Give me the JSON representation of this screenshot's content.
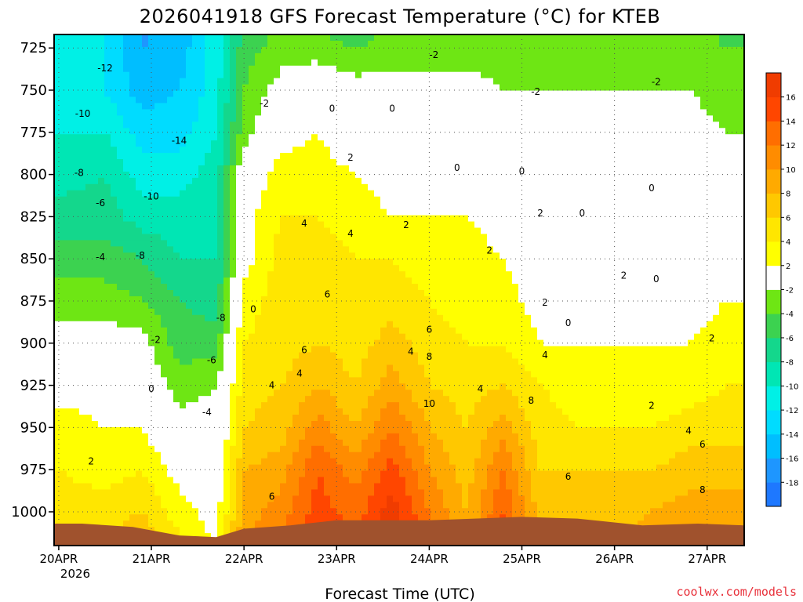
{
  "chart_data": {
    "type": "heatmap",
    "title": "2026041918 GFS Forecast Temperature (°C) for KTEB",
    "xlabel": "Forecast Time (UTC)",
    "ylabel": "",
    "credit": "coolwx.com/models",
    "y_axis": {
      "ticks": [
        725,
        750,
        775,
        800,
        825,
        850,
        875,
        900,
        925,
        950,
        975,
        1000
      ],
      "range": [
        717,
        1020
      ],
      "inverted": true,
      "units": "hPa"
    },
    "x_axis": {
      "ticks": [
        "20APR",
        "21APR",
        "22APR",
        "23APR",
        "24APR",
        "25APR",
        "26APR",
        "27APR"
      ],
      "year_label": "2026",
      "range": [
        -0.05,
        7.4
      ]
    },
    "grid": true,
    "colorbar": {
      "levels": [
        -18,
        -16,
        -14,
        -12,
        -10,
        -8,
        -6,
        -4,
        -2,
        2,
        4,
        6,
        8,
        10,
        12,
        14,
        16
      ],
      "colors": [
        "#1e78ff",
        "#1e96ff",
        "#00beff",
        "#00dcff",
        "#00f0e6",
        "#00e6b4",
        "#14d78c",
        "#3cd250",
        "#6ee614",
        "#ffffff",
        "#ffff00",
        "#ffe600",
        "#ffc800",
        "#ffaa00",
        "#ff8c00",
        "#ff6e00",
        "#ff4600",
        "#f03c00"
      ]
    },
    "profiles": [
      {
        "time": 0.0,
        "temps": [
          -11,
          -11,
          -10,
          -9,
          -7,
          -5,
          -3,
          -1,
          1,
          3,
          4,
          5
        ]
      },
      {
        "time": 0.5,
        "temps": [
          -12,
          -12,
          -10,
          -8,
          -7,
          -5,
          -3,
          -1,
          1,
          2,
          3,
          5
        ]
      },
      {
        "time": 0.9,
        "temps": [
          -16,
          -15,
          -13,
          -11,
          -9,
          -6,
          -4,
          -1,
          0,
          2,
          4,
          6
        ]
      },
      {
        "time": 1.3,
        "temps": [
          -15,
          -14,
          -13,
          -11,
          -9,
          -8,
          -6,
          -5,
          -3,
          -1,
          1,
          3
        ]
      },
      {
        "time": 1.7,
        "temps": [
          -11,
          -11,
          -10,
          -9,
          -8,
          -8,
          -7,
          -5,
          -2,
          -1,
          0,
          1
        ]
      },
      {
        "time": 2.0,
        "temps": [
          -5,
          -4,
          -3,
          0,
          1,
          1,
          3,
          4,
          5,
          6,
          8,
          9
        ]
      },
      {
        "time": 2.4,
        "temps": [
          -3,
          -1,
          1,
          3,
          4,
          5,
          5,
          5,
          6,
          7,
          9,
          11
        ]
      },
      {
        "time": 2.8,
        "temps": [
          -3,
          0,
          2,
          3,
          4,
          5,
          5,
          6,
          8,
          11,
          14,
          15
        ]
      },
      {
        "time": 3.2,
        "temps": [
          -4,
          -1,
          0,
          2,
          3,
          4,
          4,
          5,
          6,
          8,
          11,
          13
        ]
      },
      {
        "time": 3.6,
        "temps": [
          -3,
          -1,
          0,
          1,
          2,
          4,
          5,
          7,
          9,
          12,
          15,
          17
        ]
      },
      {
        "time": 4.0,
        "temps": [
          -3,
          -1,
          0,
          1,
          2,
          3,
          4,
          5,
          6,
          8,
          10,
          12
        ]
      },
      {
        "time": 4.4,
        "temps": [
          -3,
          -1,
          0,
          1,
          2,
          3,
          3,
          4,
          5,
          6,
          7,
          8
        ]
      },
      {
        "time": 4.8,
        "temps": [
          -3,
          -2,
          -1,
          0,
          1,
          2,
          3,
          4,
          6,
          9,
          12,
          14
        ]
      },
      {
        "time": 5.2,
        "temps": [
          -3,
          -2,
          -1,
          -1,
          0,
          0,
          1,
          2,
          4,
          5,
          6,
          7
        ]
      },
      {
        "time": 5.6,
        "temps": [
          -3,
          -2,
          -1,
          0,
          0,
          0,
          1,
          2,
          3,
          4,
          6,
          7
        ]
      },
      {
        "time": 6.0,
        "temps": [
          -3,
          -2,
          -1,
          0,
          0,
          1,
          1,
          2,
          3,
          4,
          6,
          7
        ]
      },
      {
        "time": 6.4,
        "temps": [
          -3,
          -2,
          -1,
          0,
          0,
          1,
          1,
          2,
          2,
          4,
          6,
          8
        ]
      },
      {
        "time": 6.8,
        "temps": [
          -3,
          -2,
          -1,
          -1,
          0,
          1,
          1,
          2,
          3,
          5,
          7,
          9
        ]
      },
      {
        "time": 7.2,
        "temps": [
          -4,
          -3,
          -2,
          -1,
          0,
          1,
          2,
          3,
          4,
          5,
          7,
          9
        ]
      },
      {
        "time": 7.4,
        "temps": [
          -4,
          -3,
          -2,
          -1,
          0,
          1,
          2,
          3,
          4,
          5,
          7,
          9
        ]
      }
    ],
    "terrain": {
      "color": "#a0522d",
      "surface_pressure": [
        {
          "time": -0.05,
          "p": 1007
        },
        {
          "time": 0.25,
          "p": 1007
        },
        {
          "time": 0.8,
          "p": 1009
        },
        {
          "time": 1.3,
          "p": 1014
        },
        {
          "time": 1.7,
          "p": 1015
        },
        {
          "time": 2.0,
          "p": 1010
        },
        {
          "time": 2.5,
          "p": 1008
        },
        {
          "time": 3.0,
          "p": 1005
        },
        {
          "time": 4.0,
          "p": 1005
        },
        {
          "time": 5.0,
          "p": 1003
        },
        {
          "time": 5.6,
          "p": 1004
        },
        {
          "time": 6.3,
          "p": 1008
        },
        {
          "time": 6.9,
          "p": 1007
        },
        {
          "time": 7.4,
          "p": 1008
        }
      ]
    },
    "contour_labels": [
      {
        "text": "-12",
        "time": 0.5,
        "p": 737
      },
      {
        "text": "-10",
        "time": 0.26,
        "p": 764
      },
      {
        "text": "-14",
        "time": 1.3,
        "p": 780
      },
      {
        "text": "-8",
        "time": 0.22,
        "p": 799
      },
      {
        "text": "-10",
        "time": 1.0,
        "p": 813
      },
      {
        "text": "-6",
        "time": 0.45,
        "p": 817
      },
      {
        "text": "-4",
        "time": 0.45,
        "p": 849
      },
      {
        "text": "-8",
        "time": 0.88,
        "p": 848
      },
      {
        "text": "-8",
        "time": 1.75,
        "p": 885
      },
      {
        "text": "-2",
        "time": 1.05,
        "p": 898
      },
      {
        "text": "-6",
        "time": 1.65,
        "p": 910
      },
      {
        "text": "-4",
        "time": 1.6,
        "p": 941
      },
      {
        "text": "0",
        "time": 1.0,
        "p": 927
      },
      {
        "text": "2",
        "time": 0.35,
        "p": 970
      },
      {
        "text": "0",
        "time": 2.1,
        "p": 880
      },
      {
        "text": "-2",
        "time": 2.22,
        "p": 758
      },
      {
        "text": "0",
        "time": 2.95,
        "p": 761
      },
      {
        "text": "0",
        "time": 3.6,
        "p": 761
      },
      {
        "text": "-2",
        "time": 4.05,
        "p": 729
      },
      {
        "text": "-2",
        "time": 5.15,
        "p": 751
      },
      {
        "text": "-2",
        "time": 6.45,
        "p": 745
      },
      {
        "text": "2",
        "time": 3.15,
        "p": 790
      },
      {
        "text": "0",
        "time": 4.3,
        "p": 796
      },
      {
        "text": "0",
        "time": 5.0,
        "p": 798
      },
      {
        "text": "0",
        "time": 6.4,
        "p": 808
      },
      {
        "text": "2",
        "time": 5.2,
        "p": 823
      },
      {
        "text": "0",
        "time": 5.65,
        "p": 823
      },
      {
        "text": "2",
        "time": 6.1,
        "p": 860
      },
      {
        "text": "0",
        "time": 6.45,
        "p": 862
      },
      {
        "text": "4",
        "time": 2.65,
        "p": 829
      },
      {
        "text": "4",
        "time": 3.15,
        "p": 835
      },
      {
        "text": "2",
        "time": 3.75,
        "p": 830
      },
      {
        "text": "2",
        "time": 4.65,
        "p": 845
      },
      {
        "text": "6",
        "time": 2.9,
        "p": 871
      },
      {
        "text": "6",
        "time": 2.65,
        "p": 904
      },
      {
        "text": "4",
        "time": 2.3,
        "p": 925
      },
      {
        "text": "4",
        "time": 2.6,
        "p": 918
      },
      {
        "text": "4",
        "time": 3.8,
        "p": 905
      },
      {
        "text": "6",
        "time": 4.0,
        "p": 892
      },
      {
        "text": "8",
        "time": 4.0,
        "p": 908
      },
      {
        "text": "10",
        "time": 4.0,
        "p": 936
      },
      {
        "text": "4",
        "time": 4.55,
        "p": 927
      },
      {
        "text": "2",
        "time": 5.25,
        "p": 876
      },
      {
        "text": "0",
        "time": 5.5,
        "p": 888
      },
      {
        "text": "4",
        "time": 5.25,
        "p": 907
      },
      {
        "text": "8",
        "time": 5.1,
        "p": 934
      },
      {
        "text": "6",
        "time": 5.5,
        "p": 979
      },
      {
        "text": "6",
        "time": 2.3,
        "p": 991
      },
      {
        "text": "2",
        "time": 6.4,
        "p": 937
      },
      {
        "text": "4",
        "time": 6.8,
        "p": 952
      },
      {
        "text": "6",
        "time": 6.95,
        "p": 960
      },
      {
        "text": "8",
        "time": 6.95,
        "p": 987
      },
      {
        "text": "2",
        "time": 7.05,
        "p": 897
      }
    ]
  }
}
